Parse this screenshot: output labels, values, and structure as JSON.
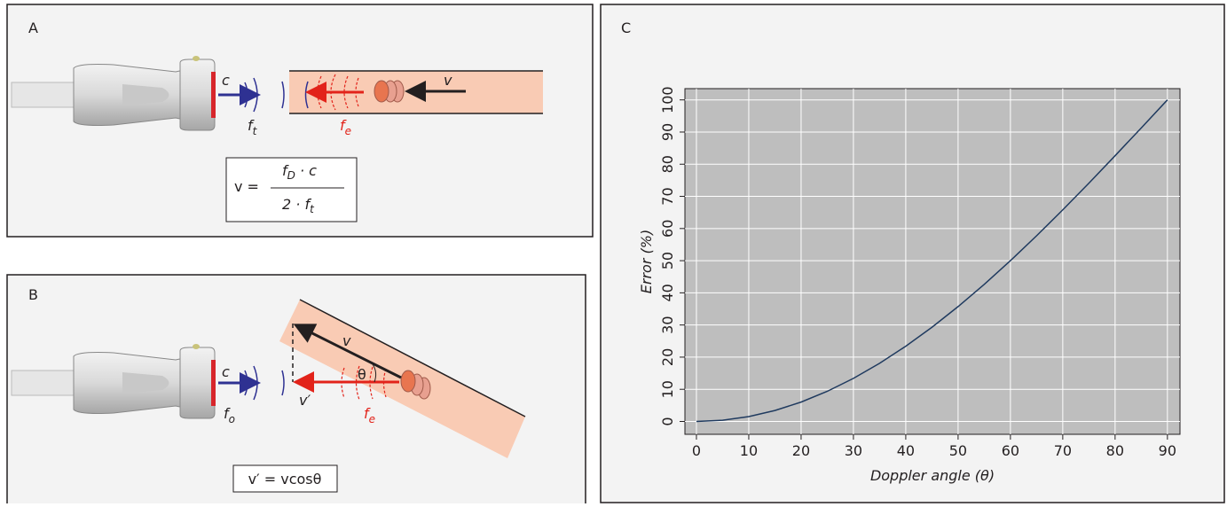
{
  "panels": {
    "a": {
      "label": "A",
      "c": "c",
      "ft": {
        "base": "f",
        "sub": "t"
      },
      "fe": {
        "base": "f",
        "sub": "e"
      },
      "v": "v",
      "formula": {
        "lhs": "v =",
        "num": {
          "base": "f",
          "sub": "D",
          "rest": " · c"
        },
        "den": {
          "base": "2 · f",
          "sub": "t"
        }
      }
    },
    "b": {
      "label": "B",
      "c": "c",
      "fo": {
        "base": "f",
        "sub": "o"
      },
      "fe": {
        "base": "f",
        "sub": "e"
      },
      "v": "v",
      "theta": "θ",
      "vprime": "v′",
      "formula": "v′ = vcosθ"
    },
    "c": {
      "label": "C"
    }
  },
  "chart_data": {
    "type": "line",
    "ylabel": "Error (%)",
    "xlabel": "Doppler angle (θ)",
    "x": [
      0,
      5,
      10,
      15,
      20,
      25,
      30,
      35,
      40,
      45,
      50,
      55,
      60,
      65,
      70,
      75,
      80,
      85,
      90
    ],
    "values": [
      0,
      0.38,
      1.52,
      3.41,
      6.03,
      9.37,
      13.4,
      18.08,
      23.4,
      29.29,
      35.72,
      42.64,
      50,
      57.74,
      65.8,
      74.12,
      82.64,
      91.28,
      100
    ],
    "color": "#1f3a5f",
    "xlim": [
      -2.2,
      92.4
    ],
    "ylim": [
      -4,
      103.5
    ],
    "xticks": [
      0,
      10,
      20,
      30,
      40,
      50,
      60,
      70,
      80,
      90
    ],
    "yticks": [
      0,
      10,
      20,
      30,
      40,
      50,
      60,
      70,
      80,
      90,
      100
    ],
    "grid": true,
    "background": "#bebebe"
  }
}
